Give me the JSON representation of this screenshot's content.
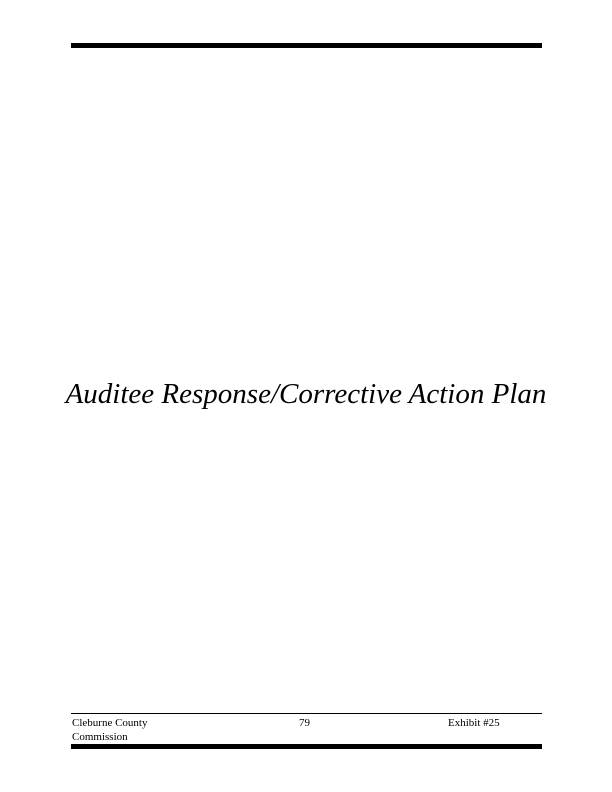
{
  "title": "Auditee Response/Corrective Action Plan",
  "footer": {
    "entity_line1": "Cleburne County",
    "entity_line2": "Commission",
    "page_number": "79",
    "exhibit": "Exhibit #25"
  }
}
